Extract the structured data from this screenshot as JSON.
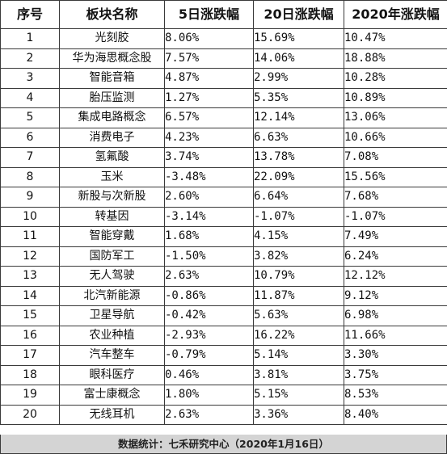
{
  "table": {
    "headers": [
      "序号",
      "板块名称",
      "5日涨跌幅",
      "20日涨跌幅",
      "2020年涨跌幅"
    ],
    "rows": [
      [
        "1",
        "光刻胶",
        "8.06%",
        "15.69%",
        "10.47%"
      ],
      [
        "2",
        "华为海思概念股",
        "7.57%",
        "14.06%",
        "18.88%"
      ],
      [
        "3",
        "智能音箱",
        "4.87%",
        "2.99%",
        "10.28%"
      ],
      [
        "4",
        "胎压监测",
        "1.27%",
        "5.35%",
        "10.89%"
      ],
      [
        "5",
        "集成电路概念",
        "6.57%",
        "12.14%",
        "13.06%"
      ],
      [
        "6",
        "消费电子",
        "4.23%",
        "6.63%",
        "10.66%"
      ],
      [
        "7",
        "氢氟酸",
        "3.74%",
        "13.78%",
        "7.08%"
      ],
      [
        "8",
        "玉米",
        "-3.48%",
        "22.09%",
        "15.56%"
      ],
      [
        "9",
        "新股与次新股",
        "2.60%",
        "6.64%",
        "7.68%"
      ],
      [
        "10",
        "转基因",
        "-3.14%",
        "-1.07%",
        "-1.07%"
      ],
      [
        "11",
        "智能穿戴",
        "1.68%",
        "4.15%",
        "7.49%"
      ],
      [
        "12",
        "国防军工",
        "-1.50%",
        "3.82%",
        "6.24%"
      ],
      [
        "13",
        "无人驾驶",
        "2.63%",
        "10.79%",
        "12.12%"
      ],
      [
        "14",
        "北汽新能源",
        "-0.86%",
        "11.87%",
        "9.12%"
      ],
      [
        "15",
        "卫星导航",
        "-0.42%",
        "5.63%",
        "6.98%"
      ],
      [
        "16",
        "农业种植",
        "-2.93%",
        "16.22%",
        "11.66%"
      ],
      [
        "17",
        "汽车整车",
        "-0.79%",
        "5.14%",
        "3.30%"
      ],
      [
        "18",
        "眼科医疗",
        "0.46%",
        "3.81%",
        "3.75%"
      ],
      [
        "19",
        "富士康概念",
        "1.80%",
        "5.15%",
        "8.53%"
      ],
      [
        "20",
        "无线耳机",
        "2.63%",
        "3.36%",
        "8.40%"
      ]
    ]
  },
  "footer": {
    "text": "数据统计：七禾研究中心（2020年1月16日）"
  },
  "colors": {
    "border": "#3a3a3a",
    "footer_bg": "#d4d4d4",
    "text": "#111111"
  }
}
